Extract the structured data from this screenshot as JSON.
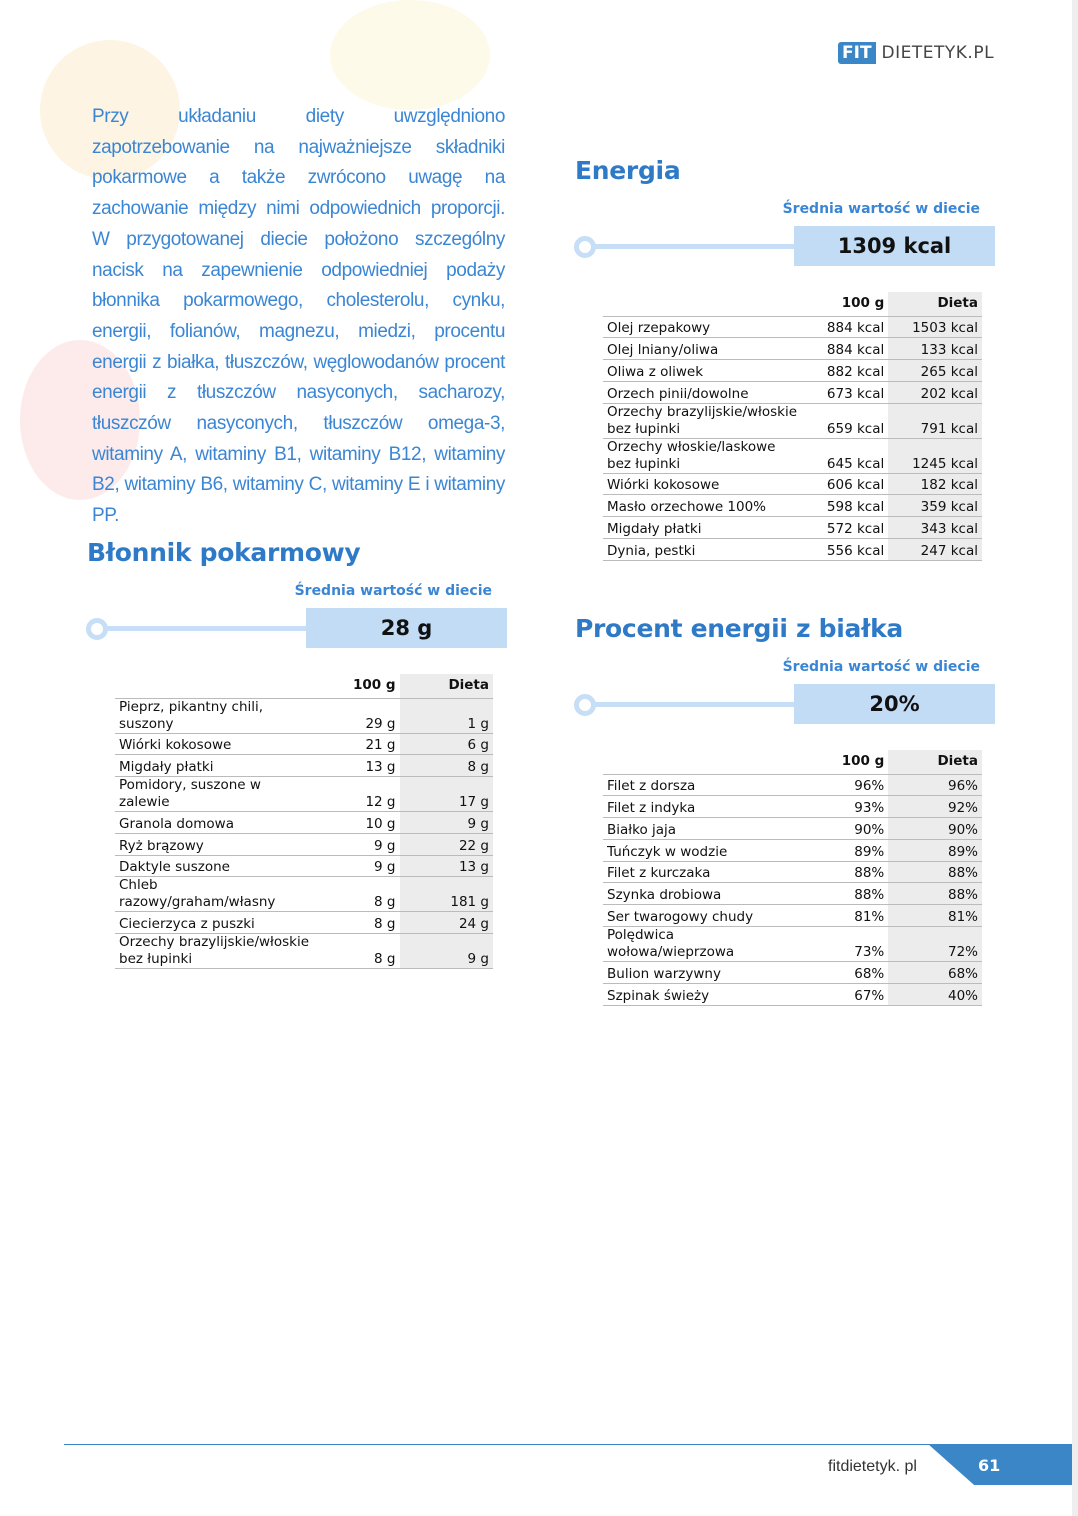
{
  "logo": {
    "fit": "FIT",
    "rest": "DIETETYK.PL"
  },
  "intro": "Przy układaniu diety uwzględniono zapotrzebowanie na najważniejsze składniki pokarmowe a także zwrócono uwagę na zachowanie między nimi odpowiednich proporcji. W przygotowanej diecie położono szczególny nacisk na zapewnienie odpowiedniej podaży błonnika pokarmowego, cholesterolu, cynku, energii, folianów, magnezu, miedzi, procentu energii z białka, tłuszczów, węglowodanów procent energii z tłuszczów nasyconych, sacharozy, tłuszczów nasyconych, tłuszczów omega-3, witaminy A, witaminy B1, witaminy B12, witaminy B2, witaminy B6, witaminy C, witaminy E i witaminy PP.",
  "sections": {
    "fiber": {
      "title": "Błonnik pokarmowy",
      "avg_label": "Średnia wartość w diecie",
      "avg": "28 g",
      "col1": "100 g",
      "col2": "Dieta",
      "rows": [
        [
          "Pieprz, pikantny chili, suszony",
          "29 g",
          "1 g"
        ],
        [
          "Wiórki kokosowe",
          "21 g",
          "6 g"
        ],
        [
          "Migdały płatki",
          "13 g",
          "8 g"
        ],
        [
          "Pomidory, suszone w zalewie",
          "12 g",
          "17 g"
        ],
        [
          "Granola domowa",
          "10 g",
          "9 g"
        ],
        [
          "Ryż brązowy",
          "9 g",
          "22 g"
        ],
        [
          "Daktyle suszone",
          "9 g",
          "13 g"
        ],
        [
          "Chleb razowy/graham/własny",
          "8 g",
          "181 g"
        ],
        [
          "Ciecierzyca z puszki",
          "8 g",
          "24 g"
        ],
        [
          "Orzechy brazylijskie/włoskie bez łupinki",
          "8 g",
          "9 g"
        ]
      ]
    },
    "energy": {
      "title": "Energia",
      "avg_label": "Średnia wartość w diecie",
      "avg": "1309 kcal",
      "col1": "100 g",
      "col2": "Dieta",
      "rows": [
        [
          "Olej rzepakowy",
          "884 kcal",
          "1503 kcal"
        ],
        [
          "Olej lniany/oliwa",
          "884 kcal",
          "133 kcal"
        ],
        [
          "Oliwa z oliwek",
          "882 kcal",
          "265 kcal"
        ],
        [
          "Orzech pinii/dowolne",
          "673 kcal",
          "202 kcal"
        ],
        [
          "Orzechy brazylijskie/włoskie bez łupinki",
          "659 kcal",
          "791 kcal"
        ],
        [
          "Orzechy włoskie/laskowe bez łupinki",
          "645 kcal",
          "1245 kcal"
        ],
        [
          "Wiórki kokosowe",
          "606 kcal",
          "182 kcal"
        ],
        [
          "Masło orzechowe 100%",
          "598 kcal",
          "359 kcal"
        ],
        [
          "Migdały płatki",
          "572 kcal",
          "343 kcal"
        ],
        [
          "Dynia, pestki",
          "556 kcal",
          "247 kcal"
        ]
      ]
    },
    "protein": {
      "title": "Procent energii z białka",
      "avg_label": "Średnia wartość w diecie",
      "avg": "20%",
      "col1": "100 g",
      "col2": "Dieta",
      "rows": [
        [
          "Filet z dorsza",
          "96%",
          "96%"
        ],
        [
          "Filet z indyka",
          "93%",
          "92%"
        ],
        [
          "Białko jaja",
          "90%",
          "90%"
        ],
        [
          "Tuńczyk w wodzie",
          "89%",
          "89%"
        ],
        [
          "Filet z kurczaka",
          "88%",
          "88%"
        ],
        [
          "Szynka drobiowa",
          "88%",
          "88%"
        ],
        [
          "Ser twarogowy chudy",
          "81%",
          "81%"
        ],
        [
          "Polędwica wołowa/wieprzowa",
          "73%",
          "72%"
        ],
        [
          "Bulion warzywny",
          "68%",
          "68%"
        ],
        [
          "Szpinak świeży",
          "67%",
          "40%"
        ]
      ]
    }
  },
  "footer": {
    "site": "fitdietetyk. pl",
    "page": "61"
  },
  "colors": {
    "accent": "#3a86c6",
    "bar": "#c2dcf6"
  }
}
